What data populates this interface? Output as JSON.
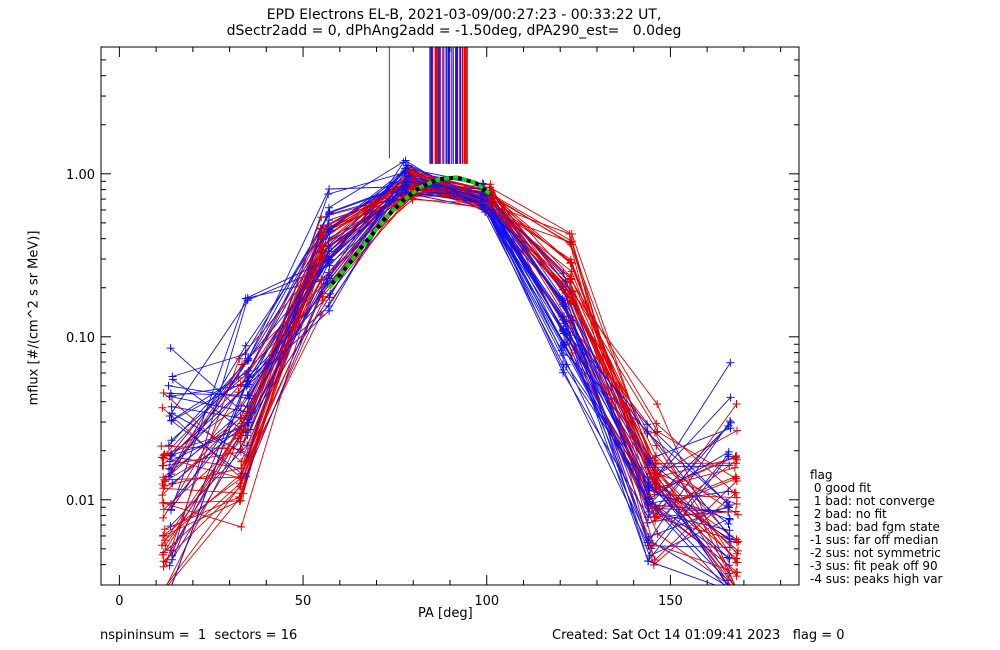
{
  "title_line1": "EPD Electrons EL-B, 2021-03-09/00:27:23 - 00:33:22 UT,",
  "title_line2": "dSectr2add = 0, dPhAng2add = -1.50deg, dPA290_est=   0.0deg",
  "footer_left": "nspininsum =  1  sectors = 16",
  "footer_right": "Created: Sat Oct 14 01:09:41 2023   flag = 0",
  "legend": {
    "title": "flag",
    "items": [
      " 0 good fit",
      " 1 bad: not converge",
      " 2 bad: no fit",
      " 3 bad: bad fgm state",
      "-1 sus: far off median",
      "-2 sus: not symmetric",
      "-3 sus: fit peak off 90",
      "-4 sus: peaks high var"
    ]
  },
  "colors": {
    "red": "#e00000",
    "blue": "#1010f0",
    "fit_green": "#00dd00",
    "fit_black": "#000000"
  },
  "chart_data": {
    "type": "line",
    "title": "EPD Electrons EL-B, 2021-03-09/00:27:23 - 00:33:22 UT,",
    "subtitle": "dSectr2add = 0, dPhAng2add = -1.50deg, dPA290_est=   0.0deg",
    "xlabel": "PA [deg]",
    "ylabel": "mflux [#/(cm^2 s sr MeV)]",
    "xlim": [
      -5,
      185
    ],
    "ylim": [
      0.003,
      6.0
    ],
    "yscale": "log",
    "xticks": [
      0,
      50,
      100,
      150
    ],
    "xtick_labels": [
      "0",
      "50",
      "100",
      "150"
    ],
    "yticks": [
      0.01,
      0.1,
      1.0
    ],
    "ytick_labels": [
      "0.01",
      "0.10",
      "1.00"
    ],
    "legend_position": "right, outside plot",
    "sector_pa": [
      12,
      33,
      55,
      80,
      101,
      123,
      146,
      168
    ],
    "series_typical": [
      {
        "name": "",
        "color": "red",
        "x": [
          12,
          33,
          55,
          80,
          101,
          123,
          146,
          168
        ],
        "y": [
          0.008,
          0.02,
          0.3,
          0.85,
          0.7,
          0.2,
          0.012,
          0.007
        ]
      },
      {
        "name": "",
        "color": "blue",
        "x": [
          14,
          35,
          57,
          78,
          99,
          121,
          144,
          166
        ],
        "y": [
          0.013,
          0.05,
          0.35,
          0.9,
          0.72,
          0.15,
          0.01,
          0.008
        ]
      }
    ],
    "fit_curve": {
      "x": [
        57,
        62,
        67,
        72,
        77,
        82,
        87,
        92,
        97,
        101
      ],
      "y": [
        0.2,
        0.27,
        0.38,
        0.52,
        0.68,
        0.83,
        0.93,
        0.95,
        0.88,
        0.75
      ]
    }
  }
}
